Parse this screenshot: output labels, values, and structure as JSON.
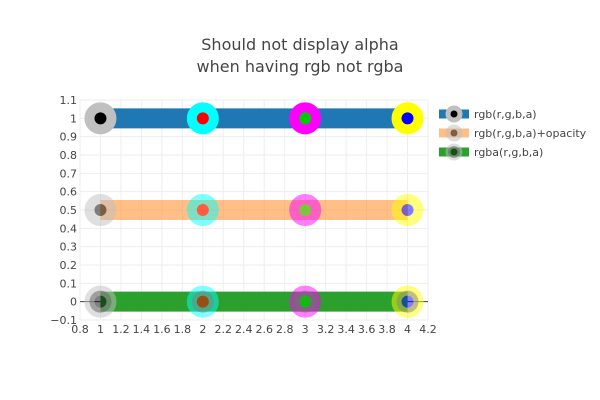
{
  "chart_data": {
    "type": "scatter",
    "title_lines": [
      "Should not display alpha",
      "when having rgb not rgba"
    ],
    "xlabel": "",
    "ylabel": "",
    "xlim": [
      0.8,
      4.2
    ],
    "ylim": [
      -0.1,
      1.1
    ],
    "x_ticks": [
      "0.8",
      "1",
      "1.2",
      "1.4",
      "1.6",
      "1.8",
      "2",
      "2.2",
      "2.4",
      "2.6",
      "2.8",
      "3",
      "3.2",
      "3.4",
      "3.6",
      "3.8",
      "4",
      "4.2"
    ],
    "y_ticks": [
      "−0.1",
      "0",
      "0.1",
      "0.2",
      "0.3",
      "0.4",
      "0.5",
      "0.6",
      "0.7",
      "0.8",
      "0.9",
      "1",
      "1.1"
    ],
    "grid": true,
    "legend_position": "top-right",
    "series": [
      {
        "name": "rgb(r,g,b,a)",
        "x": [
          1,
          2,
          3,
          4
        ],
        "y": [
          1,
          1,
          1,
          1
        ],
        "line_color": "#1f77b4",
        "line_opacity": 1,
        "marker_opacity": 1,
        "marker_colors": [
          "#000000",
          "#ff0000",
          "#00cc00",
          "#0000ff"
        ],
        "marker_line_colors": [
          "#c0c0c0",
          "#00ffff",
          "#ff00ff",
          "#ffff00"
        ]
      },
      {
        "name": "rgb(r,g,b,a)+opacity",
        "x": [
          1,
          2,
          3,
          4
        ],
        "y": [
          0.5,
          0.5,
          0.5,
          0.5
        ],
        "line_color": "#ff7f0e",
        "line_opacity": 0.5,
        "marker_opacity": 0.5,
        "marker_colors": [
          "#000000",
          "#ff0000",
          "#00cc00",
          "#0000ff"
        ],
        "marker_line_colors": [
          "#c0c0c0",
          "#00ffff",
          "#ff00ff",
          "#ffff00"
        ]
      },
      {
        "name": "rgba(r,g,b,a)",
        "x": [
          1,
          2,
          3,
          4
        ],
        "y": [
          0,
          0,
          0,
          0
        ],
        "line_color": "#2ca02c",
        "line_opacity": 1,
        "marker_opacity": 1,
        "marker_colors": [
          "rgba(0,0,0,0.5)",
          "rgba(255,0,0,0.5)",
          "rgba(0,204,0,0.5)",
          "rgba(0,0,255,0.5)"
        ],
        "marker_line_colors": [
          "rgba(192,192,192,0.5)",
          "rgba(0,255,255,0.5)",
          "rgba(255,0,255,0.5)",
          "rgba(255,255,0,0.5)"
        ]
      }
    ]
  }
}
